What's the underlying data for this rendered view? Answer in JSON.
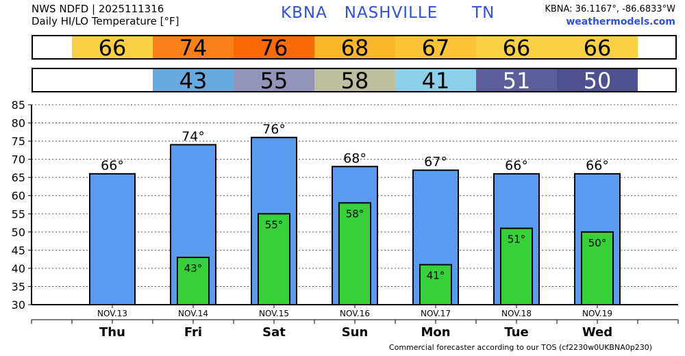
{
  "header": {
    "line1": "NWS NDFD | 2025111316",
    "line2": "Daily HI/LO Temperature [°F]",
    "station_title": "KBNA   NASHVILLE      TN",
    "coords": "KBNA: 36.1167°, -86.6833°W",
    "site": "weathermodels.com"
  },
  "hi_strip": [
    {
      "text": "66",
      "color": "#fad045",
      "text_color": "#000000"
    },
    {
      "text": "74",
      "color": "#fa8119",
      "text_color": "#000000"
    },
    {
      "text": "76",
      "color": "#fa6a07",
      "text_color": "#000000"
    },
    {
      "text": "68",
      "color": "#fab72a",
      "text_color": "#000000"
    },
    {
      "text": "67",
      "color": "#fac338",
      "text_color": "#000000"
    },
    {
      "text": "66",
      "color": "#fad045",
      "text_color": "#000000"
    },
    {
      "text": "66",
      "color": "#fad045",
      "text_color": "#000000"
    }
  ],
  "lo_strip": [
    {
      "text": "",
      "color": "#ffffff",
      "text_color": "#000000"
    },
    {
      "text": "43",
      "color": "#68aae0",
      "text_color": "#000000"
    },
    {
      "text": "55",
      "color": "#9494bb",
      "text_color": "#000000"
    },
    {
      "text": "58",
      "color": "#bebea0",
      "text_color": "#000000"
    },
    {
      "text": "41",
      "color": "#8ccfe8",
      "text_color": "#000000"
    },
    {
      "text": "51",
      "color": "#5d5d99",
      "text_color": "#ffffff"
    },
    {
      "text": "50",
      "color": "#50508e",
      "text_color": "#ffffff"
    }
  ],
  "chart_data": {
    "type": "bar",
    "categories": [
      "Thu",
      "Fri",
      "Sat",
      "Sun",
      "Mon",
      "Tue",
      "Wed"
    ],
    "dates": [
      "NOV.13",
      "NOV.14",
      "NOV.15",
      "NOV.16",
      "NOV.17",
      "NOV.18",
      "NOV.19"
    ],
    "series": [
      {
        "values": [
          66,
          74,
          76,
          68,
          67,
          66,
          66
        ],
        "labels": [
          "66°",
          "74°",
          "76°",
          "68°",
          "67°",
          "66°",
          "66°"
        ],
        "color": "#5a9bf0"
      },
      {
        "values": [
          null,
          43,
          55,
          58,
          41,
          51,
          50
        ],
        "labels": [
          "",
          "43°",
          "55°",
          "58°",
          "41°",
          "51°",
          "50°"
        ],
        "color": "#38d038"
      }
    ],
    "ylim": [
      30,
      85
    ],
    "yticks": [
      "30",
      "35",
      "40",
      "45",
      "50",
      "55",
      "60",
      "65",
      "70",
      "75",
      "80",
      "85"
    ],
    "grid": true
  },
  "footer": "Commercial forecaster according to our TOS (cf2230w0UKBNA0p230)"
}
